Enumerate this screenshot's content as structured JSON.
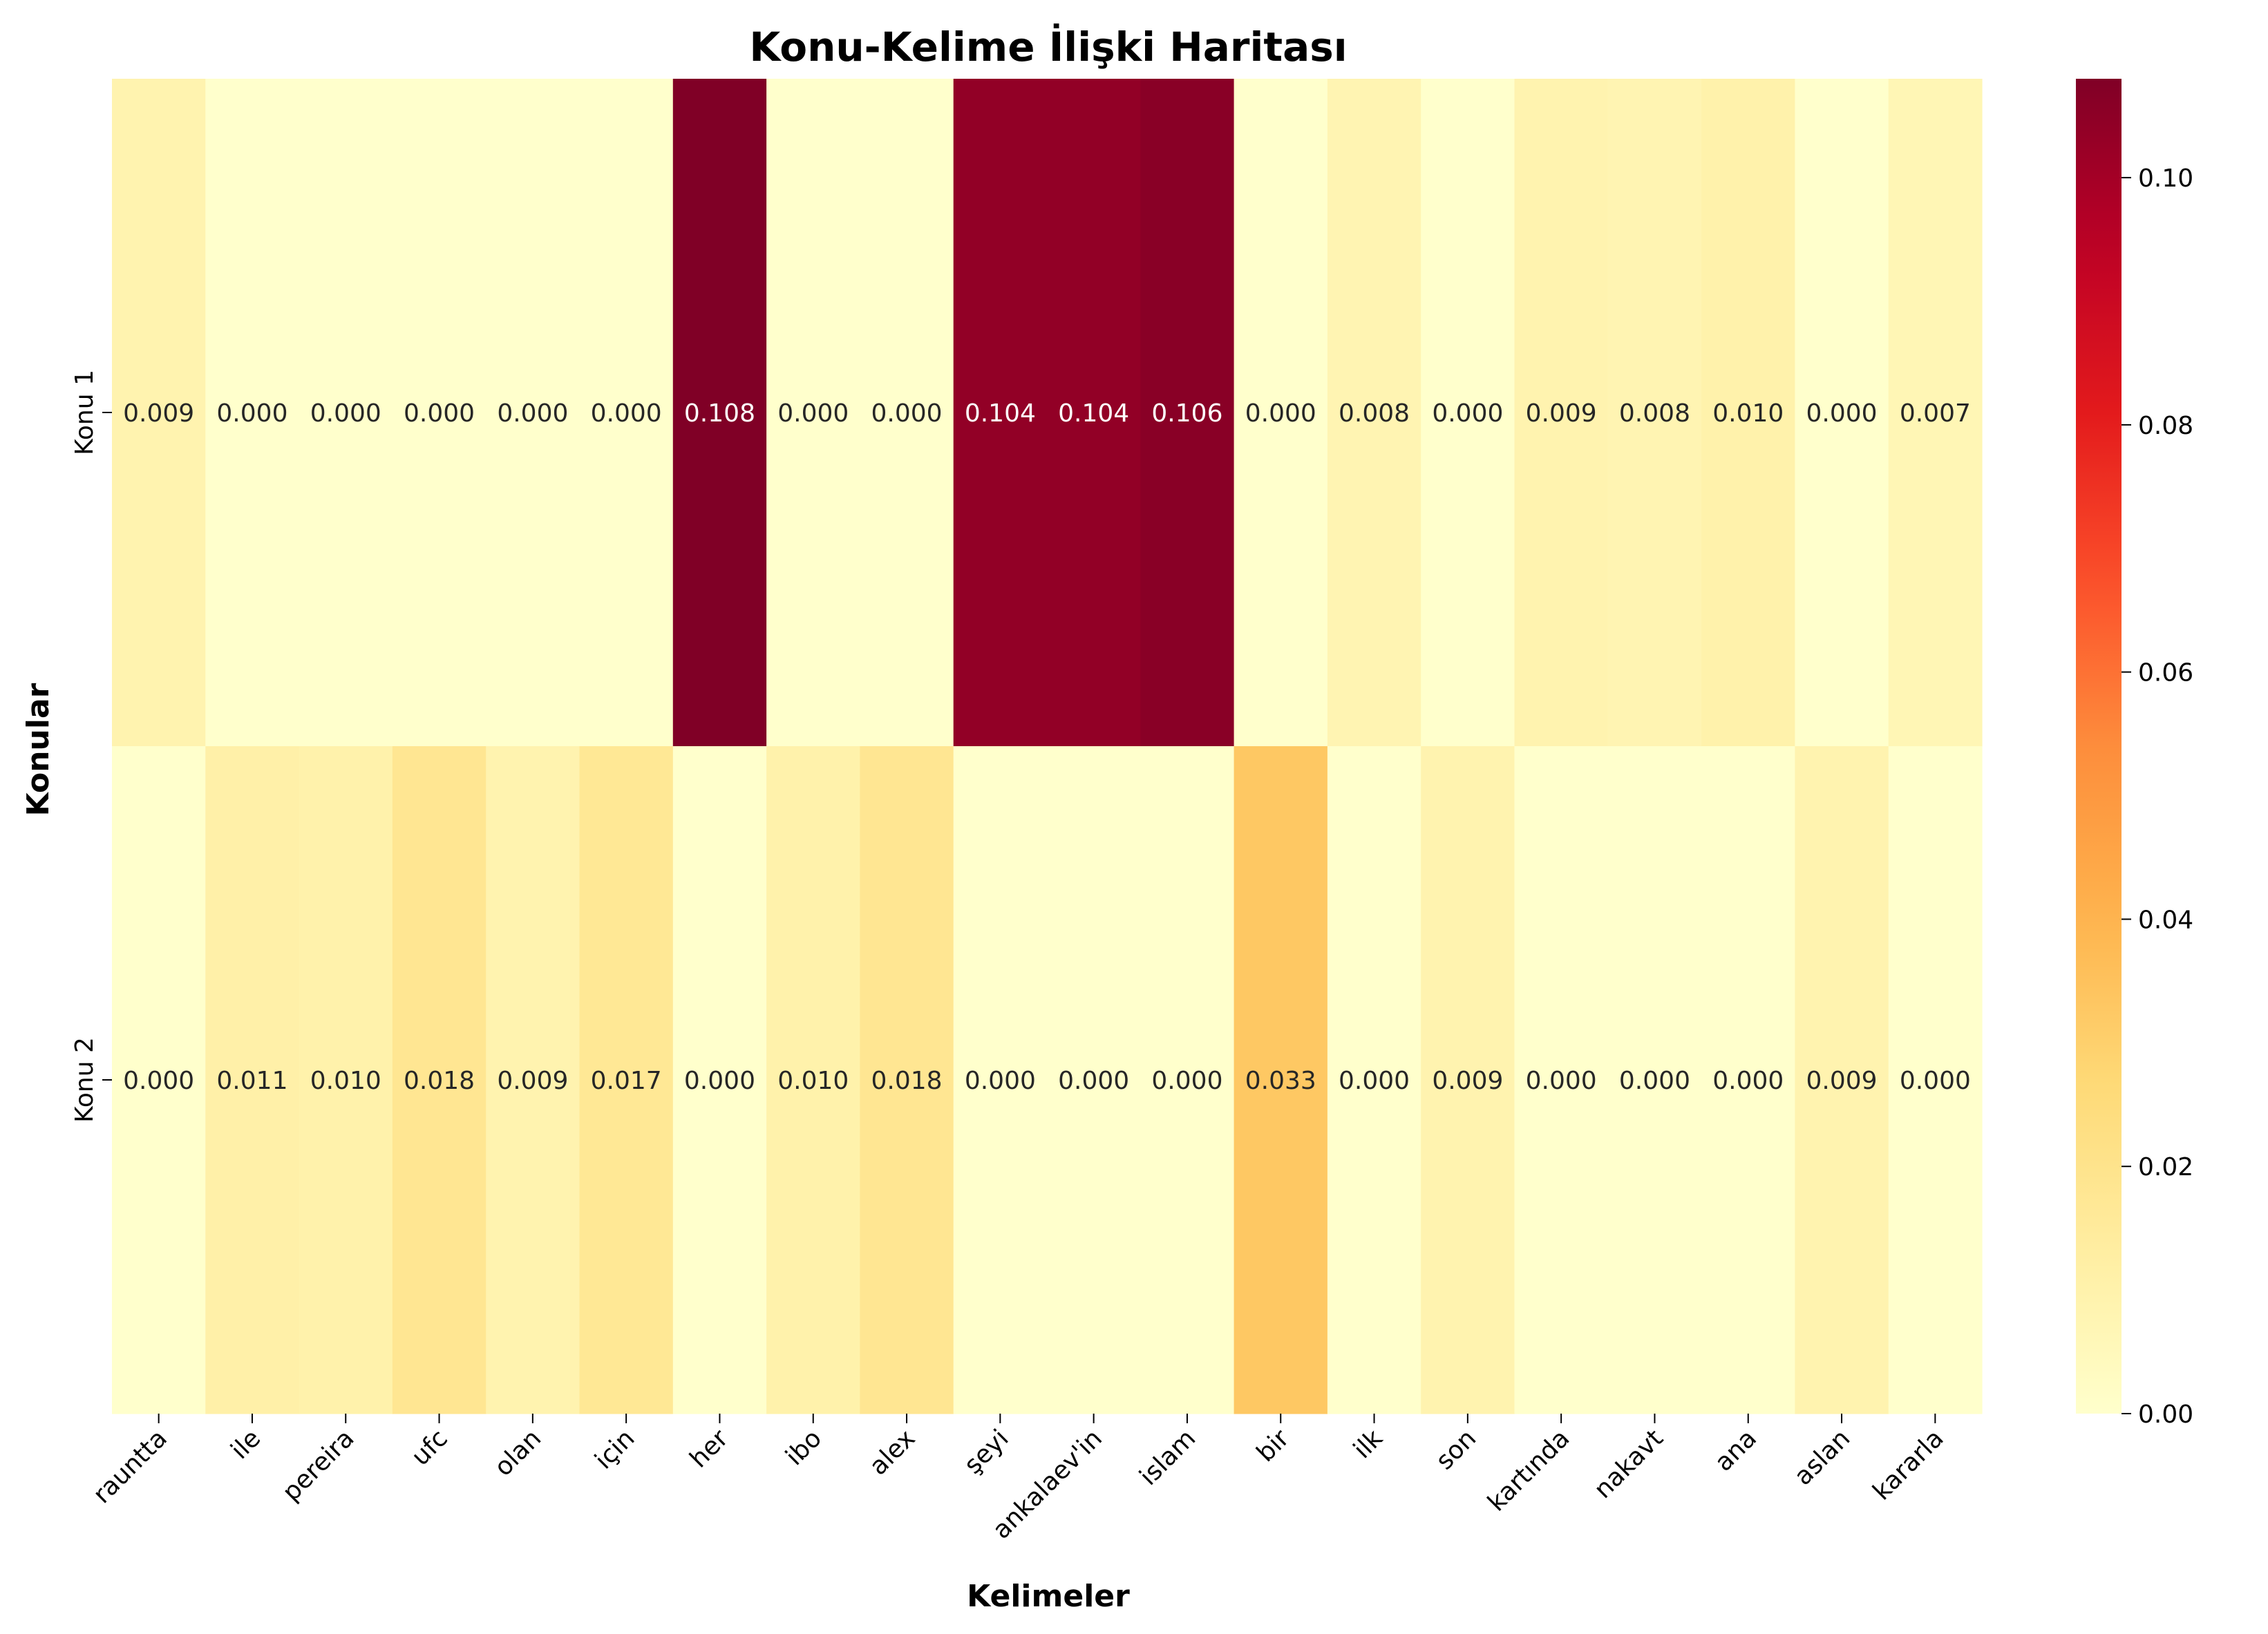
{
  "chart_data": {
    "type": "heatmap",
    "title": "Konu-Kelime İlişki Haritası",
    "xlabel": "Kelimeler",
    "ylabel": "Konular",
    "x": [
      "rauntta",
      "ile",
      "pereira",
      "ufc",
      "olan",
      "için",
      "her",
      "i̇bo",
      "alex",
      "şeyi",
      "ankalaev'in",
      "i̇slam",
      "bir",
      "ilk",
      "son",
      "kartında",
      "nakavt",
      "ana",
      "aslan",
      "kararla"
    ],
    "y": [
      "Konu 1",
      "Konu 2"
    ],
    "values": [
      [
        0.009,
        0.0,
        0.0,
        0.0,
        0.0,
        0.0,
        0.108,
        0.0,
        0.0,
        0.104,
        0.104,
        0.106,
        0.0,
        0.008,
        0.0,
        0.009,
        0.008,
        0.01,
        0.0,
        0.007
      ],
      [
        0.0,
        0.011,
        0.01,
        0.018,
        0.009,
        0.017,
        0.0,
        0.01,
        0.018,
        0.0,
        0.0,
        0.0,
        0.033,
        0.0,
        0.009,
        0.0,
        0.0,
        0.0,
        0.009,
        0.0
      ]
    ],
    "value_format": "3 decimals",
    "colormap": "YlOrRd",
    "colorbar": {
      "min": 0.0,
      "max": 0.108,
      "ticks": [
        "0.00",
        "0.02",
        "0.04",
        "0.06",
        "0.08",
        "0.10"
      ]
    },
    "grid": false,
    "annotations": true
  }
}
